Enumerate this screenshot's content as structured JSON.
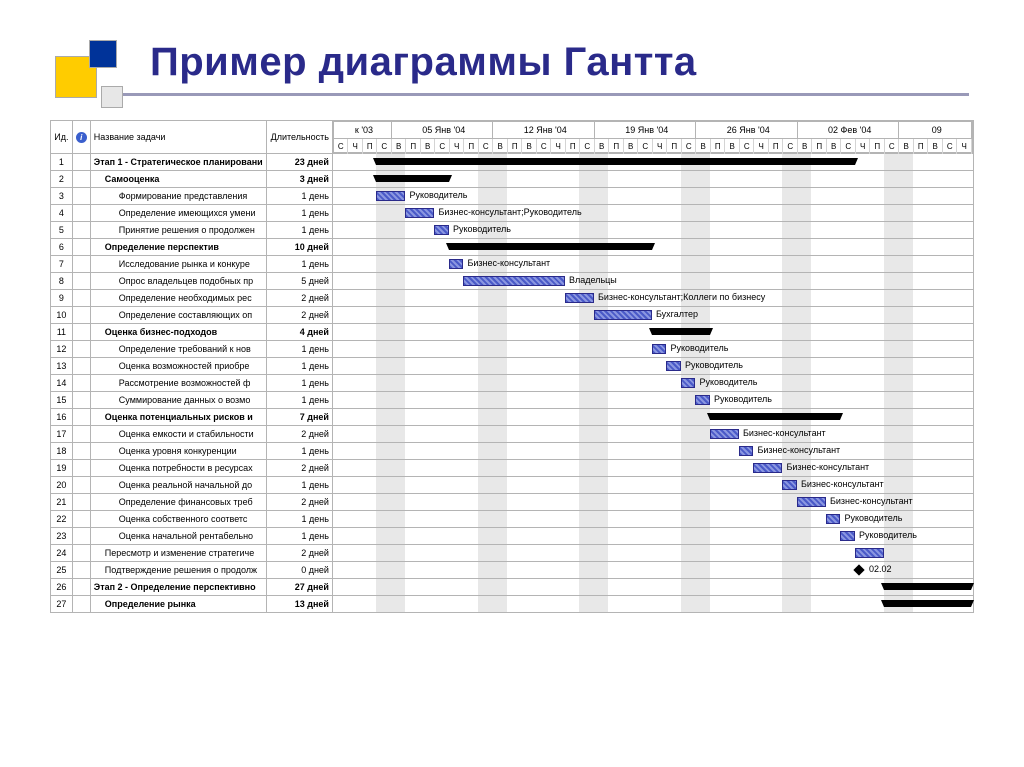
{
  "title": "Пример диаграммы Гантта",
  "columns": {
    "id": "Ид.",
    "info": "",
    "name": "Название задачи",
    "duration": "Длительность"
  },
  "timeline": {
    "total_days": 44,
    "day_width": 14.5,
    "weeks": [
      {
        "label": "к '03",
        "days": 4
      },
      {
        "label": "05 Янв '04",
        "days": 7
      },
      {
        "label": "12 Янв '04",
        "days": 7
      },
      {
        "label": "19 Янв '04",
        "days": 7
      },
      {
        "label": "26 Янв '04",
        "days": 7
      },
      {
        "label": "02 Фев '04",
        "days": 7
      },
      {
        "label": "09",
        "days": 5
      }
    ],
    "day_letters": [
      "С",
      "Ч",
      "П",
      "С",
      "В",
      "П",
      "В",
      "С",
      "Ч",
      "П",
      "С",
      "В",
      "П",
      "В",
      "С",
      "Ч",
      "П",
      "С",
      "В",
      "П",
      "В",
      "С",
      "Ч",
      "П",
      "С",
      "В",
      "П",
      "В",
      "С",
      "Ч",
      "П",
      "С",
      "В",
      "П",
      "В",
      "С",
      "Ч",
      "П",
      "С",
      "В",
      "П",
      "В",
      "С",
      "Ч"
    ],
    "weekend_cols": [
      3,
      4,
      10,
      11,
      17,
      18,
      24,
      25,
      31,
      32,
      38,
      39
    ]
  },
  "colors": {
    "summary": "#000000",
    "task_border": "#2a2a8a",
    "task_fill1": "#4a5ac8",
    "task_fill2": "#8a96e0",
    "weekend": "#e8e8e8",
    "grid": "#b4b4b4"
  },
  "rows": [
    {
      "id": 1,
      "name": "Этап 1 - Стратегическое планировани",
      "dur": "23 дней",
      "bold": true,
      "indent": 0,
      "bar": {
        "type": "summary",
        "start": 3,
        "len": 33
      }
    },
    {
      "id": 2,
      "name": "Самооценка",
      "dur": "3 дней",
      "bold": true,
      "indent": 1,
      "bar": {
        "type": "summary",
        "start": 3,
        "len": 5
      }
    },
    {
      "id": 3,
      "name": "Формирование представления",
      "dur": "1 день",
      "indent": 2,
      "bar": {
        "type": "task",
        "start": 3,
        "len": 2,
        "label": "Руководитель"
      }
    },
    {
      "id": 4,
      "name": "Определение имеющихся умени",
      "dur": "1 день",
      "indent": 2,
      "bar": {
        "type": "task",
        "start": 5,
        "len": 2,
        "label": "Бизнес-консультант;Руководитель"
      }
    },
    {
      "id": 5,
      "name": "Принятие решения о продолжен",
      "dur": "1 день",
      "indent": 2,
      "bar": {
        "type": "task",
        "start": 7,
        "len": 1,
        "label": "Руководитель"
      }
    },
    {
      "id": 6,
      "name": "Определение перспектив",
      "dur": "10 дней",
      "bold": true,
      "indent": 1,
      "bar": {
        "type": "summary",
        "start": 8,
        "len": 14
      }
    },
    {
      "id": 7,
      "name": "Исследование рынка и конкуре",
      "dur": "1 день",
      "indent": 2,
      "bar": {
        "type": "task",
        "start": 8,
        "len": 1,
        "label": "Бизнес-консультант"
      }
    },
    {
      "id": 8,
      "name": "Опрос владельцев подобных пр",
      "dur": "5 дней",
      "indent": 2,
      "bar": {
        "type": "task",
        "start": 9,
        "len": 7,
        "label": "Владельцы"
      }
    },
    {
      "id": 9,
      "name": "Определение необходимых рес",
      "dur": "2 дней",
      "indent": 2,
      "bar": {
        "type": "task",
        "start": 16,
        "len": 2,
        "label": "Бизнес-консультант;Коллеги по бизнесу"
      }
    },
    {
      "id": 10,
      "name": "Определение составляющих оп",
      "dur": "2 дней",
      "indent": 2,
      "bar": {
        "type": "task",
        "start": 18,
        "len": 4,
        "label": "Бухгалтер"
      }
    },
    {
      "id": 11,
      "name": "Оценка бизнес-подходов",
      "dur": "4 дней",
      "bold": true,
      "indent": 1,
      "bar": {
        "type": "summary",
        "start": 22,
        "len": 4
      }
    },
    {
      "id": 12,
      "name": "Определение требований к нов",
      "dur": "1 день",
      "indent": 2,
      "bar": {
        "type": "task",
        "start": 22,
        "len": 1,
        "label": "Руководитель"
      }
    },
    {
      "id": 13,
      "name": "Оценка возможностей приобре",
      "dur": "1 день",
      "indent": 2,
      "bar": {
        "type": "task",
        "start": 23,
        "len": 1,
        "label": "Руководитель"
      }
    },
    {
      "id": 14,
      "name": "Рассмотрение возможностей ф",
      "dur": "1 день",
      "indent": 2,
      "bar": {
        "type": "task",
        "start": 24,
        "len": 1,
        "label": "Руководитель"
      }
    },
    {
      "id": 15,
      "name": "Суммирование данных о возмо",
      "dur": "1 день",
      "indent": 2,
      "bar": {
        "type": "task",
        "start": 25,
        "len": 1,
        "label": "Руководитель"
      }
    },
    {
      "id": 16,
      "name": "Оценка потенциальных рисков и",
      "dur": "7 дней",
      "bold": true,
      "indent": 1,
      "bar": {
        "type": "summary",
        "start": 26,
        "len": 9
      }
    },
    {
      "id": 17,
      "name": "Оценка емкости и стабильности",
      "dur": "2 дней",
      "indent": 2,
      "bar": {
        "type": "task",
        "start": 26,
        "len": 2,
        "label": "Бизнес-консультант"
      }
    },
    {
      "id": 18,
      "name": "Оценка уровня конкуренции",
      "dur": "1 день",
      "indent": 2,
      "bar": {
        "type": "task",
        "start": 28,
        "len": 1,
        "label": "Бизнес-консультант"
      }
    },
    {
      "id": 19,
      "name": "Оценка потребности в ресурсах",
      "dur": "2 дней",
      "indent": 2,
      "bar": {
        "type": "task",
        "start": 29,
        "len": 2,
        "label": "Бизнес-консультант"
      }
    },
    {
      "id": 20,
      "name": "Оценка реальной начальной до",
      "dur": "1 день",
      "indent": 2,
      "bar": {
        "type": "task",
        "start": 31,
        "len": 1,
        "label": "Бизнес-консультант"
      }
    },
    {
      "id": 21,
      "name": "Определение финансовых треб",
      "dur": "2 дней",
      "indent": 2,
      "bar": {
        "type": "task",
        "start": 32,
        "len": 2,
        "label": "Бизнес-консультант"
      }
    },
    {
      "id": 22,
      "name": "Оценка собственного соответс",
      "dur": "1 день",
      "indent": 2,
      "bar": {
        "type": "task",
        "start": 34,
        "len": 1,
        "label": "Руководитель"
      }
    },
    {
      "id": 23,
      "name": "Оценка начальной рентабельно",
      "dur": "1 день",
      "indent": 2,
      "bar": {
        "type": "task",
        "start": 35,
        "len": 1,
        "label": "Руководитель"
      }
    },
    {
      "id": 24,
      "name": "Пересмотр и изменение стратегиче",
      "dur": "2 дней",
      "indent": 1,
      "bar": {
        "type": "task",
        "start": 36,
        "len": 2
      }
    },
    {
      "id": 25,
      "name": "Подтверждение решения о продолж",
      "dur": "0 дней",
      "indent": 1,
      "bar": {
        "type": "milestone",
        "start": 36,
        "label": "02.02"
      }
    },
    {
      "id": 26,
      "name": "Этап 2 - Определение перспективно",
      "dur": "27 дней",
      "bold": true,
      "indent": 0,
      "bar": {
        "type": "summary",
        "start": 38,
        "len": 6
      }
    },
    {
      "id": 27,
      "name": "Определение рынка",
      "dur": "13 дней",
      "bold": true,
      "indent": 1,
      "bar": {
        "type": "summary",
        "start": 38,
        "len": 6
      }
    }
  ]
}
